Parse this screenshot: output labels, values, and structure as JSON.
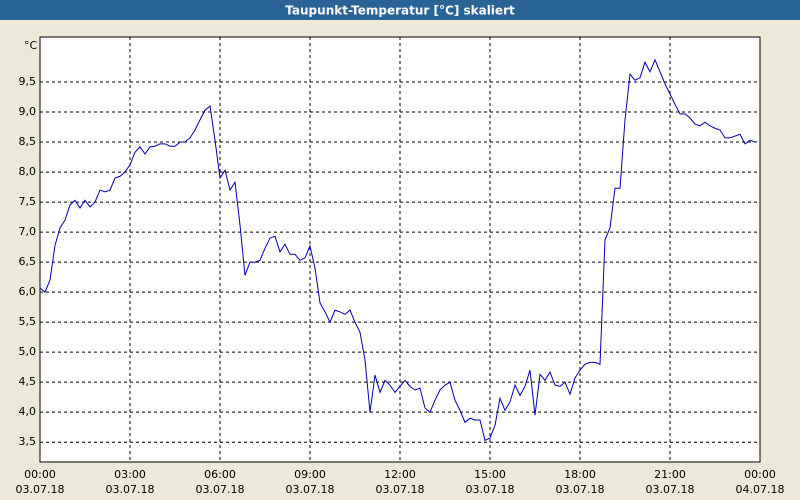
{
  "chart_data": {
    "type": "line",
    "title": "Taupunkt-Temperatur [°C] skaliert",
    "y_unit": "°C",
    "x": [
      0,
      10,
      20,
      30,
      40,
      50,
      60,
      70,
      80,
      90,
      100,
      110,
      120,
      130,
      140,
      150,
      160,
      170,
      180,
      190,
      200,
      210,
      220,
      230,
      240,
      250,
      260,
      270,
      280,
      290,
      300,
      310,
      320,
      330,
      340,
      350,
      360,
      370,
      380,
      390,
      400,
      410,
      420,
      430,
      440,
      450,
      460,
      470,
      480,
      490,
      500,
      510,
      520,
      530,
      540,
      550,
      560,
      570,
      580,
      590,
      600,
      610,
      620,
      630,
      640,
      650,
      660,
      670,
      680,
      690,
      700,
      710,
      720,
      730,
      740,
      750,
      760,
      770,
      780,
      790,
      800,
      810,
      820,
      830,
      840,
      850,
      860,
      870,
      880,
      890,
      900,
      910,
      920,
      930,
      940,
      950,
      960,
      970,
      980,
      990,
      1000,
      1010,
      1020,
      1030,
      1040,
      1050,
      1060,
      1070,
      1080,
      1090,
      1100,
      1110,
      1120,
      1130,
      1140,
      1150,
      1160,
      1170,
      1180,
      1190,
      1200,
      1210,
      1220,
      1230,
      1240,
      1250,
      1260,
      1270,
      1280,
      1290,
      1300,
      1310,
      1320,
      1330,
      1340,
      1350,
      1360,
      1370,
      1380,
      1390,
      1400,
      1410,
      1420,
      1430
    ],
    "series": [
      {
        "name": "Taupunkt",
        "color": "#0000b0",
        "values": [
          6.07,
          6.0,
          6.2,
          6.78,
          7.07,
          7.2,
          7.45,
          7.53,
          7.4,
          7.53,
          7.42,
          7.5,
          7.7,
          7.67,
          7.7,
          7.9,
          7.93,
          8.0,
          8.12,
          8.33,
          8.42,
          8.3,
          8.42,
          8.43,
          8.47,
          8.47,
          8.43,
          8.43,
          8.5,
          8.5,
          8.57,
          8.7,
          8.87,
          9.03,
          9.1,
          8.53,
          7.9,
          8.03,
          7.7,
          7.83,
          7.12,
          6.28,
          6.5,
          6.5,
          6.53,
          6.73,
          6.9,
          6.93,
          6.67,
          6.8,
          6.63,
          6.63,
          6.53,
          6.57,
          6.77,
          6.4,
          5.82,
          5.67,
          5.5,
          5.7,
          5.67,
          5.63,
          5.7,
          5.5,
          5.33,
          4.87,
          4.0,
          4.62,
          4.33,
          4.53,
          4.45,
          4.33,
          4.43,
          4.53,
          4.43,
          4.37,
          4.4,
          4.07,
          4.0,
          4.2,
          4.37,
          4.45,
          4.5,
          4.2,
          4.03,
          3.83,
          3.9,
          3.87,
          3.87,
          3.53,
          3.57,
          3.78,
          4.23,
          4.03,
          4.17,
          4.45,
          4.28,
          4.43,
          4.7,
          3.95,
          4.63,
          4.53,
          4.67,
          4.45,
          4.43,
          4.5,
          4.3,
          4.57,
          4.7,
          4.8,
          4.83,
          4.83,
          4.8,
          6.87,
          7.07,
          7.73,
          7.73,
          8.87,
          9.63,
          9.53,
          9.57,
          9.83,
          9.67,
          9.87,
          9.67,
          9.47,
          9.3,
          9.13,
          8.97,
          8.97,
          8.9,
          8.8,
          8.77,
          8.83,
          8.77,
          8.73,
          8.7,
          8.57,
          8.57,
          8.6,
          8.63,
          8.47,
          8.53,
          8.5
        ]
      }
    ],
    "xlim": [
      0,
      1440
    ],
    "ylim": [
      3.17,
      10.25
    ],
    "xticks": [
      {
        "value": 0,
        "label": "00:00",
        "date": "03.07.18"
      },
      {
        "value": 180,
        "label": "03:00",
        "date": "03.07.18"
      },
      {
        "value": 360,
        "label": "06:00",
        "date": "03.07.18"
      },
      {
        "value": 540,
        "label": "09:00",
        "date": "03.07.18"
      },
      {
        "value": 720,
        "label": "12:00",
        "date": "03.07.18"
      },
      {
        "value": 900,
        "label": "15:00",
        "date": "03.07.18"
      },
      {
        "value": 1080,
        "label": "18:00",
        "date": "03.07.18"
      },
      {
        "value": 1260,
        "label": "21:00",
        "date": "03.07.18"
      },
      {
        "value": 1440,
        "label": "00:00",
        "date": "04.07.18"
      }
    ],
    "yticks": [
      {
        "value": 3.5,
        "label": "3,5"
      },
      {
        "value": 4.0,
        "label": "4,0"
      },
      {
        "value": 4.5,
        "label": "4,5"
      },
      {
        "value": 5.0,
        "label": "5,0"
      },
      {
        "value": 5.5,
        "label": "5,5"
      },
      {
        "value": 6.0,
        "label": "6,0"
      },
      {
        "value": 6.5,
        "label": "6,5"
      },
      {
        "value": 7.0,
        "label": "7,0"
      },
      {
        "value": 7.5,
        "label": "7,5"
      },
      {
        "value": 8.0,
        "label": "8,0"
      },
      {
        "value": 8.5,
        "label": "8,5"
      },
      {
        "value": 9.0,
        "label": "9,0"
      },
      {
        "value": 9.5,
        "label": "9,5"
      }
    ],
    "grid": true
  }
}
